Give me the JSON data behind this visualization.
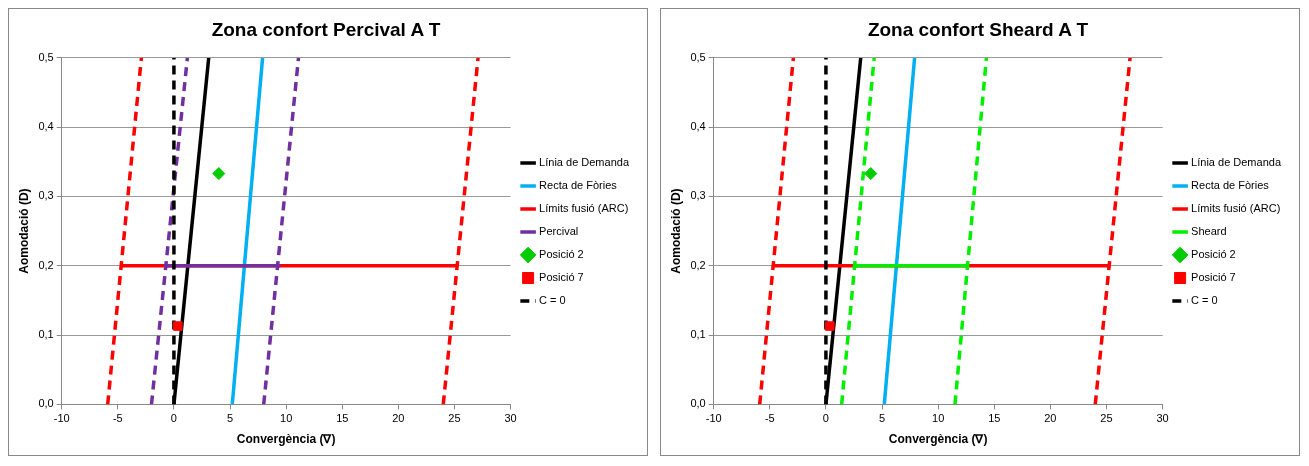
{
  "chart_data": [
    {
      "type": "line",
      "title": "Zona confort Percival A T",
      "xlabel": "Convergència (∇)",
      "ylabel": "Aomodació (D)",
      "xlim": [
        -10,
        30
      ],
      "xticks": [
        -10,
        -5,
        0,
        5,
        10,
        15,
        20,
        25,
        30
      ],
      "ylim": [
        0,
        0.5
      ],
      "yticks": [
        {
          "value": 0,
          "label": "0,0"
        },
        {
          "value": 0.1,
          "label": "0,1"
        },
        {
          "value": 0.2,
          "label": "0,2"
        },
        {
          "value": 0.3,
          "label": "0,3"
        },
        {
          "value": 0.4,
          "label": "0,4"
        },
        {
          "value": 0.5,
          "label": "0,5"
        }
      ],
      "grid": "y",
      "legend": "right",
      "series": [
        {
          "name": "Línia de Demanda",
          "type": "line",
          "color": "#000000",
          "x": [
            0,
            3.1
          ],
          "values": [
            0,
            0.5
          ]
        },
        {
          "name": "Recta de Fòries",
          "type": "line",
          "color": "#00b0f0",
          "x": [
            5.2,
            7.9
          ],
          "values": [
            0,
            0.5
          ]
        },
        {
          "name": "Límits fusió (ARC)",
          "type": "line",
          "color": "#ff0000",
          "x": [
            -4.7,
            25.3
          ],
          "values": [
            0.2,
            0.2
          ]
        },
        {
          "type": "line",
          "color": "#ff0000",
          "line_style": "dashed",
          "x": [
            -5.9,
            -2.9
          ],
          "values": [
            0,
            0.5
          ]
        },
        {
          "type": "line",
          "color": "#ff0000",
          "line_style": "dashed",
          "x": [
            24,
            27.1
          ],
          "values": [
            0,
            0.5
          ]
        },
        {
          "name": "Percival",
          "type": "line",
          "color": "#7030a0",
          "x": [
            -0.8,
            9.5
          ],
          "values": [
            0.2,
            0.2
          ]
        },
        {
          "type": "line",
          "color": "#7030a0",
          "line_style": "dashed",
          "x": [
            -2,
            1.2
          ],
          "values": [
            0,
            0.5
          ]
        },
        {
          "type": "line",
          "color": "#7030a0",
          "line_style": "dashed",
          "x": [
            8,
            11.1
          ],
          "values": [
            0,
            0.5
          ]
        },
        {
          "name": "Posició 2",
          "type": "scatter",
          "color": "#00cc00",
          "marker": "diamond",
          "x": [
            4
          ],
          "values": [
            0.333
          ]
        },
        {
          "name": "Posició 7",
          "type": "scatter",
          "color": "#ff0000",
          "marker": "square",
          "x": [
            0.35
          ],
          "values": [
            0.113
          ]
        },
        {
          "name": "C = 0",
          "type": "line",
          "color": "#000000",
          "line_style": "dashed",
          "x": [
            0,
            0
          ],
          "values": [
            0,
            0.5
          ]
        }
      ]
    },
    {
      "type": "line",
      "title": "Zona confort Sheard A T",
      "xlabel": "Convergència (∇)",
      "ylabel": "Aomodació (D)",
      "xlim": [
        -10,
        30
      ],
      "xticks": [
        -10,
        -5,
        0,
        5,
        10,
        15,
        20,
        25,
        30
      ],
      "ylim": [
        0,
        0.5
      ],
      "yticks": [
        {
          "value": 0,
          "label": "0,0"
        },
        {
          "value": 0.1,
          "label": "0,1"
        },
        {
          "value": 0.2,
          "label": "0,2"
        },
        {
          "value": 0.3,
          "label": "0,3"
        },
        {
          "value": 0.4,
          "label": "0,4"
        },
        {
          "value": 0.5,
          "label": "0,5"
        }
      ],
      "grid": "y",
      "legend": "right",
      "series": [
        {
          "name": "Línia de Demanda",
          "type": "line",
          "color": "#000000",
          "x": [
            0,
            3.1
          ],
          "values": [
            0,
            0.5
          ]
        },
        {
          "name": "Recta de Fòries",
          "type": "line",
          "color": "#00b0f0",
          "x": [
            5.2,
            7.9
          ],
          "values": [
            0,
            0.5
          ]
        },
        {
          "name": "Límits fusió (ARC)",
          "type": "line",
          "color": "#ff0000",
          "x": [
            -4.7,
            25.3
          ],
          "values": [
            0.2,
            0.2
          ]
        },
        {
          "type": "line",
          "color": "#ff0000",
          "line_style": "dashed",
          "x": [
            -5.9,
            -2.9
          ],
          "values": [
            0,
            0.5
          ]
        },
        {
          "type": "line",
          "color": "#ff0000",
          "line_style": "dashed",
          "x": [
            24,
            27.1
          ],
          "values": [
            0,
            0.5
          ]
        },
        {
          "name": "Sheard",
          "type": "line",
          "color": "#00ee00",
          "x": [
            2.4,
            12.7
          ],
          "values": [
            0.2,
            0.2
          ]
        },
        {
          "type": "line",
          "color": "#00ee00",
          "line_style": "dashed",
          "x": [
            1.4,
            4.3
          ],
          "values": [
            0,
            0.5
          ]
        },
        {
          "type": "line",
          "color": "#00ee00",
          "line_style": "dashed",
          "x": [
            11.5,
            14.3
          ],
          "values": [
            0,
            0.5
          ]
        },
        {
          "name": "Posició 2",
          "type": "scatter",
          "color": "#00cc00",
          "marker": "diamond",
          "x": [
            4
          ],
          "values": [
            0.333
          ]
        },
        {
          "name": "Posició 7",
          "type": "scatter",
          "color": "#ff0000",
          "marker": "square",
          "x": [
            0.35
          ],
          "values": [
            0.113
          ]
        },
        {
          "name": "C = 0",
          "type": "line",
          "color": "#000000",
          "line_style": "dashed",
          "x": [
            0,
            0
          ],
          "values": [
            0,
            0.5
          ]
        }
      ]
    }
  ]
}
